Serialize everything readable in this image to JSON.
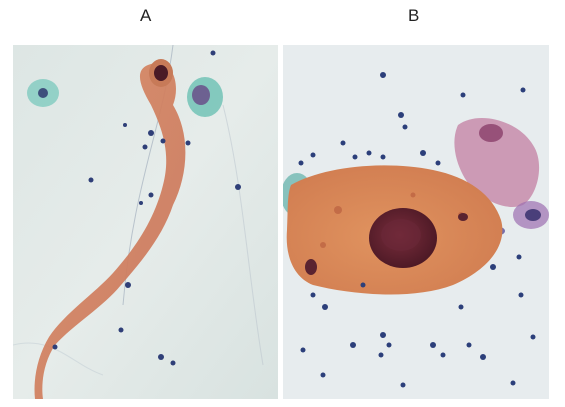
{
  "figure": {
    "panels": [
      {
        "label": "A"
      },
      {
        "label": "B"
      }
    ]
  },
  "colors": {
    "background": "#ffffff",
    "slide_bg_a": "#dfe8e6",
    "slide_bg_b": "#e9eef0",
    "cytoplasm_orange": "#d9875a",
    "nucleus_dark": "#5a1f2e",
    "squamous_cyan": "#6ec4b8",
    "lymphocyte_blue": "#2c3f7a"
  }
}
